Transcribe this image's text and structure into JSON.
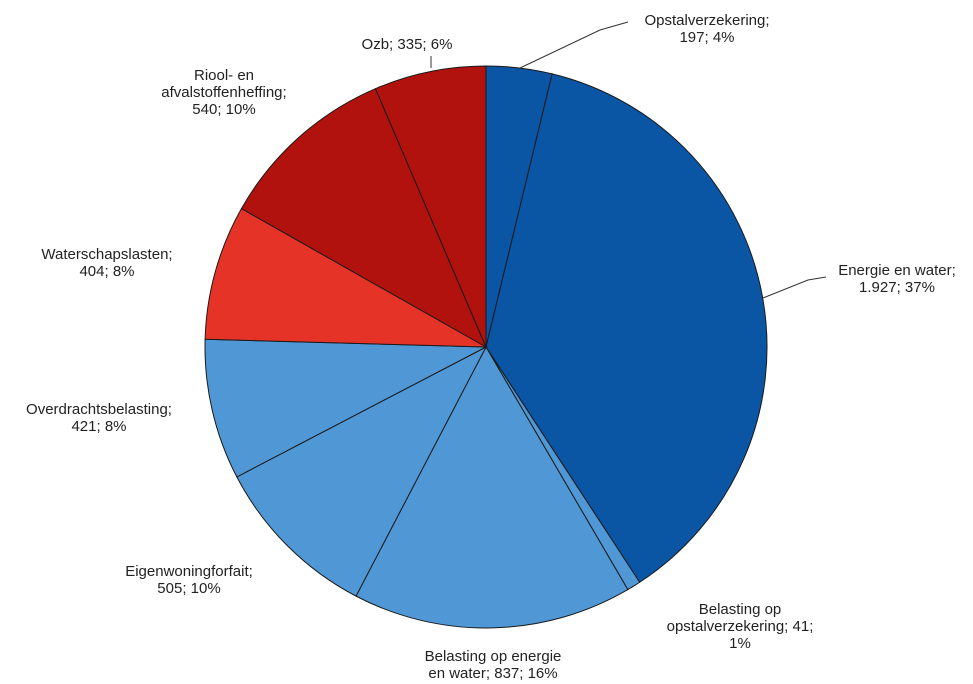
{
  "chart_data": {
    "type": "pie",
    "title": "",
    "start_angle_deg": 0,
    "direction": "clockwise",
    "slices": [
      {
        "label": "Opstalverzekering",
        "value": 197,
        "percent": "4%",
        "color": "#0B55A5",
        "text_lines": [
          "Opstalverzekering;",
          "197; 4%"
        ]
      },
      {
        "label": "Energie en water",
        "value": 1927,
        "percent": "37%",
        "color": "#0B55A5",
        "text_lines": [
          "Energie en water;",
          "1.927; 37%"
        ]
      },
      {
        "label": "Belasting op opstalverzekering",
        "value": 41,
        "percent": "1%",
        "color": "#4F98D5",
        "text_lines": [
          "Belasting op",
          "opstalverzekering; 41;",
          "1%"
        ]
      },
      {
        "label": "Belasting op energie en water",
        "value": 837,
        "percent": "16%",
        "color": "#4F98D5",
        "text_lines": [
          "Belasting op energie",
          "en water; 837; 16%"
        ]
      },
      {
        "label": "Eigenwoningforfait",
        "value": 505,
        "percent": "10%",
        "color": "#4F98D5",
        "text_lines": [
          "Eigenwoningforfait;",
          "505; 10%"
        ]
      },
      {
        "label": "Overdrachtsbelasting",
        "value": 421,
        "percent": "8%",
        "color": "#4F98D5",
        "text_lines": [
          "Overdrachtsbelasting;",
          "421; 8%"
        ]
      },
      {
        "label": "Waterschapslasten",
        "value": 404,
        "percent": "8%",
        "color": "#E63328",
        "text_lines": [
          "Waterschapslasten;",
          "404; 8%"
        ]
      },
      {
        "label": "Riool- en afvalstoffenheffing",
        "value": 540,
        "percent": "10%",
        "color": "#B2120E",
        "text_lines": [
          "Riool- en",
          "afvalstoffenheffing;",
          "540; 10%"
        ]
      },
      {
        "label": "Ozb",
        "value": 335,
        "percent": "6%",
        "color": "#B2120E",
        "text_lines": [
          "Ozb; 335; 6%"
        ]
      }
    ]
  }
}
